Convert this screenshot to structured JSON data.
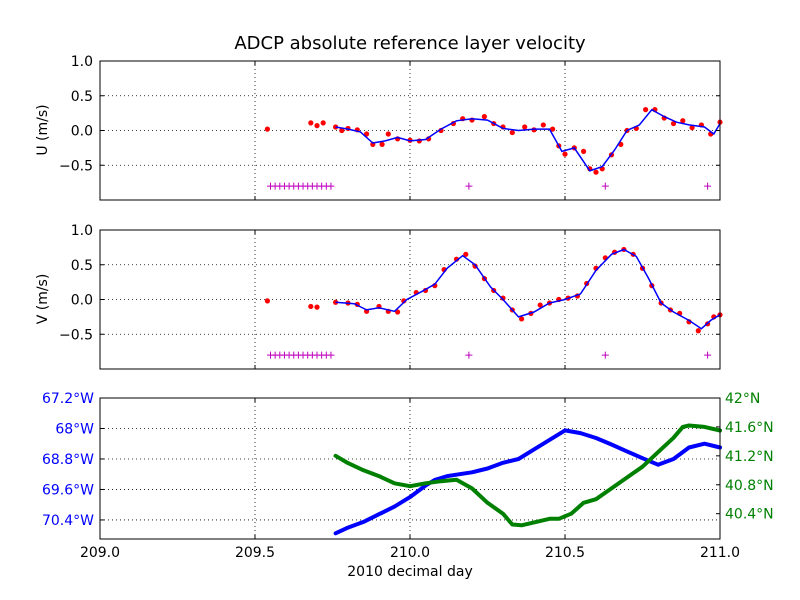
{
  "title": "ADCP absolute reference layer velocity",
  "xlabel": "2010 decimal day",
  "colors": {
    "points": "#ff0000",
    "smooth": "#0000ff",
    "flags": "#bf00bf",
    "lon": "#0000ff",
    "lat": "#008000",
    "grid": "#000000"
  },
  "chart_data": [
    {
      "type": "scatter",
      "ylabel": "U (m/s)",
      "xlim": [
        209.0,
        211.0
      ],
      "ylim": [
        -1.0,
        1.0
      ],
      "x_ticks": [
        209.0,
        209.5,
        210.0,
        210.5,
        211.0
      ],
      "y_ticks": [
        -0.5,
        0.0,
        0.5,
        1.0
      ],
      "y_tick_labels": [
        "−0.5",
        "0.0",
        "0.5",
        "1.0"
      ],
      "grid": true,
      "series": [
        {
          "kind": "points_and_smoothed_line",
          "points": [
            [
              209.54,
              0.02
            ],
            [
              209.68,
              0.11
            ],
            [
              209.7,
              0.07
            ],
            [
              209.72,
              0.11
            ],
            [
              209.76,
              0.05
            ],
            [
              209.78,
              0.0
            ],
            [
              209.8,
              0.03
            ],
            [
              209.83,
              0.01
            ],
            [
              209.86,
              -0.05
            ],
            [
              209.88,
              -0.2
            ],
            [
              209.91,
              -0.2
            ],
            [
              209.93,
              -0.05
            ],
            [
              209.96,
              -0.12
            ],
            [
              210.0,
              -0.14
            ],
            [
              210.03,
              -0.15
            ],
            [
              210.06,
              -0.12
            ],
            [
              210.1,
              0.0
            ],
            [
              210.14,
              0.1
            ],
            [
              210.17,
              0.17
            ],
            [
              210.2,
              0.15
            ],
            [
              210.24,
              0.2
            ],
            [
              210.27,
              0.1
            ],
            [
              210.3,
              0.05
            ],
            [
              210.33,
              -0.03
            ],
            [
              210.37,
              0.05
            ],
            [
              210.4,
              0.01
            ],
            [
              210.43,
              0.08
            ],
            [
              210.46,
              0.02
            ],
            [
              210.48,
              -0.22
            ],
            [
              210.5,
              -0.34
            ],
            [
              210.53,
              -0.25
            ],
            [
              210.56,
              -0.3
            ],
            [
              210.58,
              -0.55
            ],
            [
              210.6,
              -0.6
            ],
            [
              210.62,
              -0.55
            ],
            [
              210.65,
              -0.35
            ],
            [
              210.68,
              -0.2
            ],
            [
              210.7,
              0.0
            ],
            [
              210.73,
              0.03
            ],
            [
              210.76,
              0.3
            ],
            [
              210.79,
              0.3
            ],
            [
              210.82,
              0.18
            ],
            [
              210.85,
              0.1
            ],
            [
              210.88,
              0.14
            ],
            [
              210.91,
              0.04
            ],
            [
              210.94,
              0.08
            ],
            [
              210.97,
              -0.05
            ],
            [
              211.0,
              0.12
            ]
          ],
          "line": [
            [
              209.76,
              0.05
            ],
            [
              209.8,
              0.02
            ],
            [
              209.84,
              -0.02
            ],
            [
              209.88,
              -0.18
            ],
            [
              209.92,
              -0.15
            ],
            [
              209.96,
              -0.1
            ],
            [
              210.0,
              -0.15
            ],
            [
              210.05,
              -0.13
            ],
            [
              210.1,
              0.02
            ],
            [
              210.15,
              0.14
            ],
            [
              210.2,
              0.17
            ],
            [
              210.25,
              0.15
            ],
            [
              210.3,
              0.03
            ],
            [
              210.35,
              0.0
            ],
            [
              210.4,
              0.02
            ],
            [
              210.45,
              0.02
            ],
            [
              210.49,
              -0.3
            ],
            [
              210.53,
              -0.25
            ],
            [
              210.58,
              -0.58
            ],
            [
              210.62,
              -0.52
            ],
            [
              210.66,
              -0.28
            ],
            [
              210.7,
              0.0
            ],
            [
              210.74,
              0.08
            ],
            [
              210.78,
              0.3
            ],
            [
              210.82,
              0.2
            ],
            [
              210.86,
              0.12
            ],
            [
              210.9,
              0.08
            ],
            [
              210.95,
              0.05
            ],
            [
              210.98,
              -0.05
            ],
            [
              211.0,
              0.1
            ]
          ]
        },
        {
          "kind": "flags",
          "y": -0.8,
          "x": [
            209.55,
            209.565,
            209.58,
            209.595,
            209.61,
            209.625,
            209.64,
            209.655,
            209.67,
            209.685,
            209.7,
            209.715,
            209.73,
            209.745,
            210.19,
            210.63,
            210.96
          ]
        }
      ]
    },
    {
      "type": "scatter",
      "ylabel": "V (m/s)",
      "xlim": [
        209.0,
        211.0
      ],
      "ylim": [
        -1.0,
        1.0
      ],
      "x_ticks": [
        209.0,
        209.5,
        210.0,
        210.5,
        211.0
      ],
      "y_ticks": [
        -0.5,
        0.0,
        0.5,
        1.0
      ],
      "y_tick_labels": [
        "−0.5",
        "0.0",
        "0.5",
        "1.0"
      ],
      "grid": true,
      "series": [
        {
          "kind": "points_and_smoothed_line",
          "points": [
            [
              209.54,
              -0.02
            ],
            [
              209.68,
              -0.1
            ],
            [
              209.7,
              -0.11
            ],
            [
              209.76,
              -0.04
            ],
            [
              209.8,
              -0.05
            ],
            [
              209.83,
              -0.07
            ],
            [
              209.86,
              -0.17
            ],
            [
              209.9,
              -0.1
            ],
            [
              209.93,
              -0.17
            ],
            [
              209.96,
              -0.18
            ],
            [
              209.98,
              -0.02
            ],
            [
              210.02,
              0.1
            ],
            [
              210.05,
              0.13
            ],
            [
              210.08,
              0.2
            ],
            [
              210.11,
              0.43
            ],
            [
              210.15,
              0.58
            ],
            [
              210.18,
              0.65
            ],
            [
              210.21,
              0.48
            ],
            [
              210.24,
              0.3
            ],
            [
              210.27,
              0.13
            ],
            [
              210.3,
              0.02
            ],
            [
              210.33,
              -0.15
            ],
            [
              210.36,
              -0.28
            ],
            [
              210.39,
              -0.2
            ],
            [
              210.42,
              -0.08
            ],
            [
              210.45,
              -0.05
            ],
            [
              210.48,
              0.0
            ],
            [
              210.51,
              0.02
            ],
            [
              210.54,
              0.05
            ],
            [
              210.57,
              0.23
            ],
            [
              210.6,
              0.45
            ],
            [
              210.63,
              0.6
            ],
            [
              210.66,
              0.68
            ],
            [
              210.69,
              0.72
            ],
            [
              210.72,
              0.65
            ],
            [
              210.75,
              0.45
            ],
            [
              210.78,
              0.2
            ],
            [
              210.81,
              -0.05
            ],
            [
              210.84,
              -0.15
            ],
            [
              210.87,
              -0.2
            ],
            [
              210.9,
              -0.32
            ],
            [
              210.93,
              -0.45
            ],
            [
              210.96,
              -0.35
            ],
            [
              210.98,
              -0.25
            ],
            [
              211.0,
              -0.22
            ]
          ],
          "line": [
            [
              209.76,
              -0.04
            ],
            [
              209.82,
              -0.06
            ],
            [
              209.86,
              -0.15
            ],
            [
              209.9,
              -0.12
            ],
            [
              209.95,
              -0.17
            ],
            [
              209.99,
              0.0
            ],
            [
              210.04,
              0.12
            ],
            [
              210.08,
              0.22
            ],
            [
              210.12,
              0.45
            ],
            [
              210.17,
              0.63
            ],
            [
              210.21,
              0.5
            ],
            [
              210.26,
              0.18
            ],
            [
              210.3,
              0.0
            ],
            [
              210.35,
              -0.25
            ],
            [
              210.4,
              -0.18
            ],
            [
              210.45,
              -0.05
            ],
            [
              210.5,
              0.0
            ],
            [
              210.55,
              0.08
            ],
            [
              210.6,
              0.42
            ],
            [
              210.65,
              0.65
            ],
            [
              210.69,
              0.72
            ],
            [
              210.73,
              0.62
            ],
            [
              210.77,
              0.3
            ],
            [
              210.81,
              -0.05
            ],
            [
              210.85,
              -0.18
            ],
            [
              210.9,
              -0.3
            ],
            [
              210.94,
              -0.42
            ],
            [
              210.97,
              -0.3
            ],
            [
              211.0,
              -0.22
            ]
          ]
        },
        {
          "kind": "flags",
          "y": -0.8,
          "x": [
            209.55,
            209.565,
            209.58,
            209.595,
            209.61,
            209.625,
            209.64,
            209.655,
            209.67,
            209.685,
            209.7,
            209.715,
            209.73,
            209.745,
            210.19,
            210.63,
            210.96
          ]
        }
      ]
    },
    {
      "type": "line",
      "xlim": [
        209.0,
        211.0
      ],
      "x_ticks": [
        209.0,
        209.5,
        210.0,
        210.5,
        211.0
      ],
      "x_tick_labels": [
        "209.0",
        "209.5",
        "210.0",
        "210.5",
        "211.0"
      ],
      "y_left": {
        "ylim": [
          -70.9,
          -67.2
        ],
        "ticks": [
          -67.2,
          -68.0,
          -68.8,
          -69.6,
          -70.4
        ],
        "tick_labels": [
          "67.2°W",
          "68°W",
          "68.8°W",
          "69.6°W",
          "70.4°W"
        ]
      },
      "y_right": {
        "ylim": [
          40.05,
          42.0
        ],
        "ticks": [
          42.0,
          41.6,
          41.2,
          40.8,
          40.4
        ],
        "tick_labels": [
          "42°N",
          "41.6°N",
          "41.2°N",
          "40.8°N",
          "40.4°N"
        ]
      },
      "grid": true,
      "series": [
        {
          "axis": "left",
          "x": [
            209.76,
            209.8,
            209.85,
            209.9,
            209.95,
            210.0,
            210.05,
            210.08,
            210.12,
            210.16,
            210.2,
            210.25,
            210.3,
            210.35,
            210.4,
            210.45,
            210.5,
            210.55,
            210.6,
            210.65,
            210.7,
            210.75,
            210.8,
            210.85,
            210.9,
            210.95,
            211.0
          ],
          "values": [
            -70.75,
            -70.6,
            -70.45,
            -70.25,
            -70.05,
            -69.8,
            -69.5,
            -69.35,
            -69.25,
            -69.2,
            -69.15,
            -69.05,
            -68.9,
            -68.8,
            -68.55,
            -68.3,
            -68.05,
            -68.12,
            -68.25,
            -68.42,
            -68.6,
            -68.78,
            -68.95,
            -68.8,
            -68.5,
            -68.4,
            -68.5
          ]
        },
        {
          "axis": "right",
          "x": [
            209.76,
            209.8,
            209.85,
            209.9,
            209.95,
            210.0,
            210.05,
            210.1,
            210.15,
            210.2,
            210.25,
            210.3,
            210.33,
            210.36,
            210.4,
            210.45,
            210.48,
            210.52,
            210.56,
            210.6,
            210.65,
            210.7,
            210.75,
            210.8,
            210.85,
            210.88,
            210.9,
            210.95,
            211.0
          ],
          "values": [
            41.2,
            41.1,
            41.0,
            40.92,
            40.82,
            40.78,
            40.82,
            40.85,
            40.87,
            40.75,
            40.55,
            40.4,
            40.25,
            40.24,
            40.28,
            40.33,
            40.33,
            40.4,
            40.55,
            40.6,
            40.75,
            40.9,
            41.05,
            41.25,
            41.45,
            41.6,
            41.62,
            41.6,
            41.55
          ]
        }
      ]
    }
  ]
}
